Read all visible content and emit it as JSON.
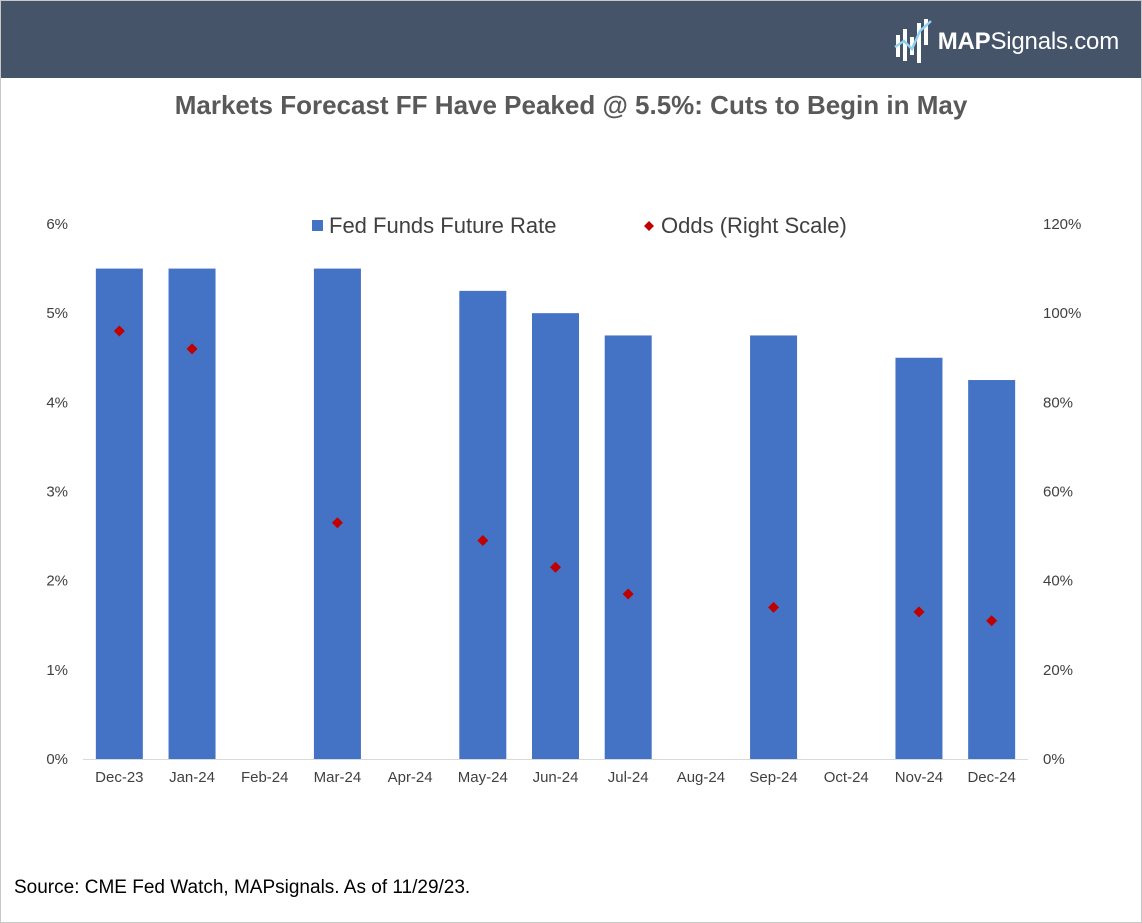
{
  "header": {
    "logo": {
      "brand_bold": "MAP",
      "brand_rest": "Signals.com"
    },
    "background_color": "#455468"
  },
  "title": "Markets Forecast FF Have Peaked @ 5.5%: Cuts to Begin in May",
  "source": "Source: CME Fed Watch, MAPsignals. As of 11/29/23.",
  "chart_data": {
    "type": "bar",
    "title": "Markets Forecast FF Have Peaked @ 5.5%: Cuts to Begin in May",
    "categories": [
      "Dec-23",
      "Jan-24",
      "Feb-24",
      "Mar-24",
      "Apr-24",
      "May-24",
      "Jun-24",
      "Jul-24",
      "Aug-24",
      "Sep-24",
      "Oct-24",
      "Nov-24",
      "Dec-24"
    ],
    "series": [
      {
        "name": "Fed Funds Future Rate",
        "type": "bar",
        "axis": "left",
        "color": "#4472C4",
        "values": [
          5.5,
          5.5,
          null,
          5.5,
          null,
          5.25,
          5.0,
          4.75,
          null,
          4.75,
          null,
          4.5,
          4.25
        ]
      },
      {
        "name": "Odds (Right Scale)",
        "type": "scatter",
        "marker": "diamond",
        "axis": "right",
        "color": "#C00000",
        "values": [
          96,
          92,
          null,
          53,
          null,
          49,
          43,
          37,
          null,
          34,
          null,
          33,
          31
        ]
      }
    ],
    "left_axis": {
      "ylim": [
        0,
        6
      ],
      "ticks": [
        0,
        1,
        2,
        3,
        4,
        5,
        6
      ],
      "tick_labels": [
        "0%",
        "1%",
        "2%",
        "3%",
        "4%",
        "5%",
        "6%"
      ]
    },
    "right_axis": {
      "ylim": [
        0,
        120
      ],
      "ticks": [
        0,
        20,
        40,
        60,
        80,
        100,
        120
      ],
      "tick_labels": [
        "0%",
        "20%",
        "40%",
        "60%",
        "80%",
        "100%",
        "120%"
      ]
    },
    "grid": false,
    "legend_position": "top-center"
  }
}
